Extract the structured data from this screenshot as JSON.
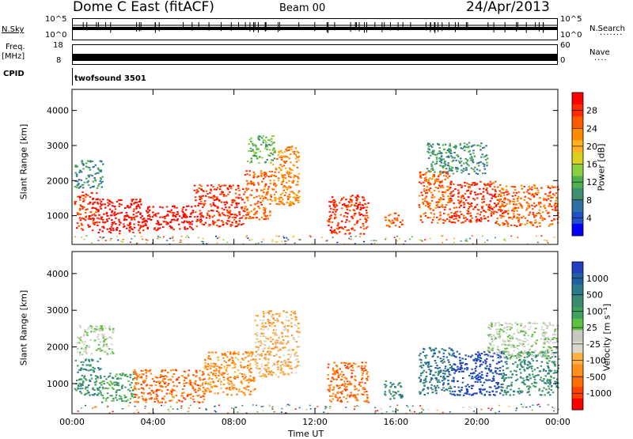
{
  "header": {
    "station": "Dome C East (fitACF)",
    "beam": "Beam 00",
    "date": "24/Apr/2013"
  },
  "strip": {
    "nsky_label": "N.Sky",
    "nsky_ticks": [
      "10^5",
      "10^0"
    ],
    "nsearch_label": "N.Search",
    "nsearch_ticks": [
      "10^5",
      "10^0"
    ],
    "freq_label": "Freq.",
    "freq_unit": "[MHz]",
    "freq_ticks": [
      "18",
      "8"
    ],
    "nave_label": "Nave",
    "nave_ticks": [
      "60",
      "0"
    ],
    "cpid_label": "CPID",
    "cpid_value": "twofsound 3501"
  },
  "chart_data": [
    {
      "type": "heatmap",
      "name": "power",
      "ylabel": "Slant Range [km]",
      "xlabel": "Time UT",
      "yticks": [
        "1000",
        "2000",
        "3000",
        "4000"
      ],
      "xticks": [
        "00:00",
        "04:00",
        "08:00",
        "12:00",
        "16:00",
        "20:00",
        "00:00"
      ],
      "xlim": [
        0,
        24
      ],
      "ylim": [
        180,
        4600
      ],
      "colorbar": {
        "label": "Power [dB]",
        "ticks": [
          "28",
          "24",
          "20",
          "16",
          "12",
          "8",
          "4"
        ],
        "colors": [
          "#ff0000",
          "#ff2a00",
          "#ff5a00",
          "#ff8a00",
          "#ffb020",
          "#d9d020",
          "#8cd040",
          "#50b050",
          "#409070",
          "#3070a0",
          "#2050c8",
          "#0000ff"
        ]
      },
      "regions": [
        {
          "t0": 0.1,
          "t1": 1.2,
          "r0": 600,
          "r1": 1700,
          "level": 1
        },
        {
          "t0": 1.2,
          "t1": 3.5,
          "r0": 500,
          "r1": 1500,
          "level": 0
        },
        {
          "t0": 3.5,
          "t1": 6.0,
          "r0": 600,
          "r1": 1300,
          "level": 0
        },
        {
          "t0": 6.0,
          "t1": 8.5,
          "r0": 700,
          "r1": 1900,
          "level": 1
        },
        {
          "t0": 8.5,
          "t1": 9.8,
          "r0": 900,
          "r1": 2300,
          "level": 2
        },
        {
          "t0": 9.8,
          "t1": 11.2,
          "r0": 1300,
          "r1": 3000,
          "level": 3
        },
        {
          "t0": 12.6,
          "t1": 14.6,
          "r0": 500,
          "r1": 1600,
          "level": 1
        },
        {
          "t0": 15.4,
          "t1": 16.3,
          "r0": 700,
          "r1": 1100,
          "level": 2
        },
        {
          "t0": 17.1,
          "t1": 18.6,
          "r0": 800,
          "r1": 2300,
          "level": 2
        },
        {
          "t0": 18.6,
          "t1": 21.0,
          "r0": 800,
          "r1": 2000,
          "level": 1
        },
        {
          "t0": 21.0,
          "t1": 24.0,
          "r0": 700,
          "r1": 1900,
          "level": 2
        },
        {
          "t0": 0.1,
          "t1": 1.5,
          "r0": 1800,
          "r1": 2600,
          "level": 8
        },
        {
          "t0": 8.6,
          "t1": 10.0,
          "r0": 2500,
          "r1": 3300,
          "level": 7
        },
        {
          "t0": 17.5,
          "t1": 20.5,
          "r0": 2200,
          "r1": 3100,
          "level": 8
        }
      ]
    },
    {
      "type": "heatmap",
      "name": "velocity",
      "ylabel": "Slant Range [km]",
      "xlabel": "Time UT",
      "yticks": [
        "1000",
        "2000",
        "3000",
        "4000"
      ],
      "xticks": [
        "00:00",
        "04:00",
        "08:00",
        "12:00",
        "16:00",
        "20:00",
        "00:00"
      ],
      "xlim": [
        0,
        24
      ],
      "ylim": [
        180,
        4600
      ],
      "colorbar": {
        "label": "Velocity [m s⁻¹]",
        "ticks": [
          "1000",
          "500",
          "100",
          "25",
          "-25",
          "-100",
          "-500",
          "-1000"
        ],
        "colors": [
          "#2040c0",
          "#2060a0",
          "#2a7a8a",
          "#3a8a70",
          "#40a060",
          "#60c040",
          "#c8c8c0",
          "#d8d8d0",
          "#ffb040",
          "#ff9020",
          "#ff7000",
          "#ff4000",
          "#ff0000"
        ]
      },
      "regions": [
        {
          "t0": 0.1,
          "t1": 1.4,
          "r0": 700,
          "r1": 1700,
          "level": 3
        },
        {
          "t0": 1.4,
          "t1": 3.0,
          "r0": 500,
          "r1": 1300,
          "level": 4
        },
        {
          "t0": 3.0,
          "t1": 6.5,
          "r0": 500,
          "r1": 1400,
          "level": 10
        },
        {
          "t0": 6.5,
          "t1": 9.0,
          "r0": 700,
          "r1": 1900,
          "level": 9
        },
        {
          "t0": 9.0,
          "t1": 11.2,
          "r0": 1200,
          "r1": 3000,
          "level": 8
        },
        {
          "t0": 12.6,
          "t1": 14.6,
          "r0": 500,
          "r1": 1600,
          "level": 10
        },
        {
          "t0": 15.4,
          "t1": 16.3,
          "r0": 600,
          "r1": 1100,
          "level": 3
        },
        {
          "t0": 17.1,
          "t1": 18.8,
          "r0": 700,
          "r1": 2000,
          "level": 2
        },
        {
          "t0": 18.8,
          "t1": 21.2,
          "r0": 700,
          "r1": 1900,
          "level": 0
        },
        {
          "t0": 21.2,
          "t1": 24.0,
          "r0": 700,
          "r1": 1900,
          "level": 3
        },
        {
          "t0": 0.2,
          "t1": 2.0,
          "r0": 1800,
          "r1": 2600,
          "level": 6
        },
        {
          "t0": 20.5,
          "t1": 24.0,
          "r0": 1700,
          "r1": 2700,
          "level": 6
        }
      ]
    }
  ]
}
